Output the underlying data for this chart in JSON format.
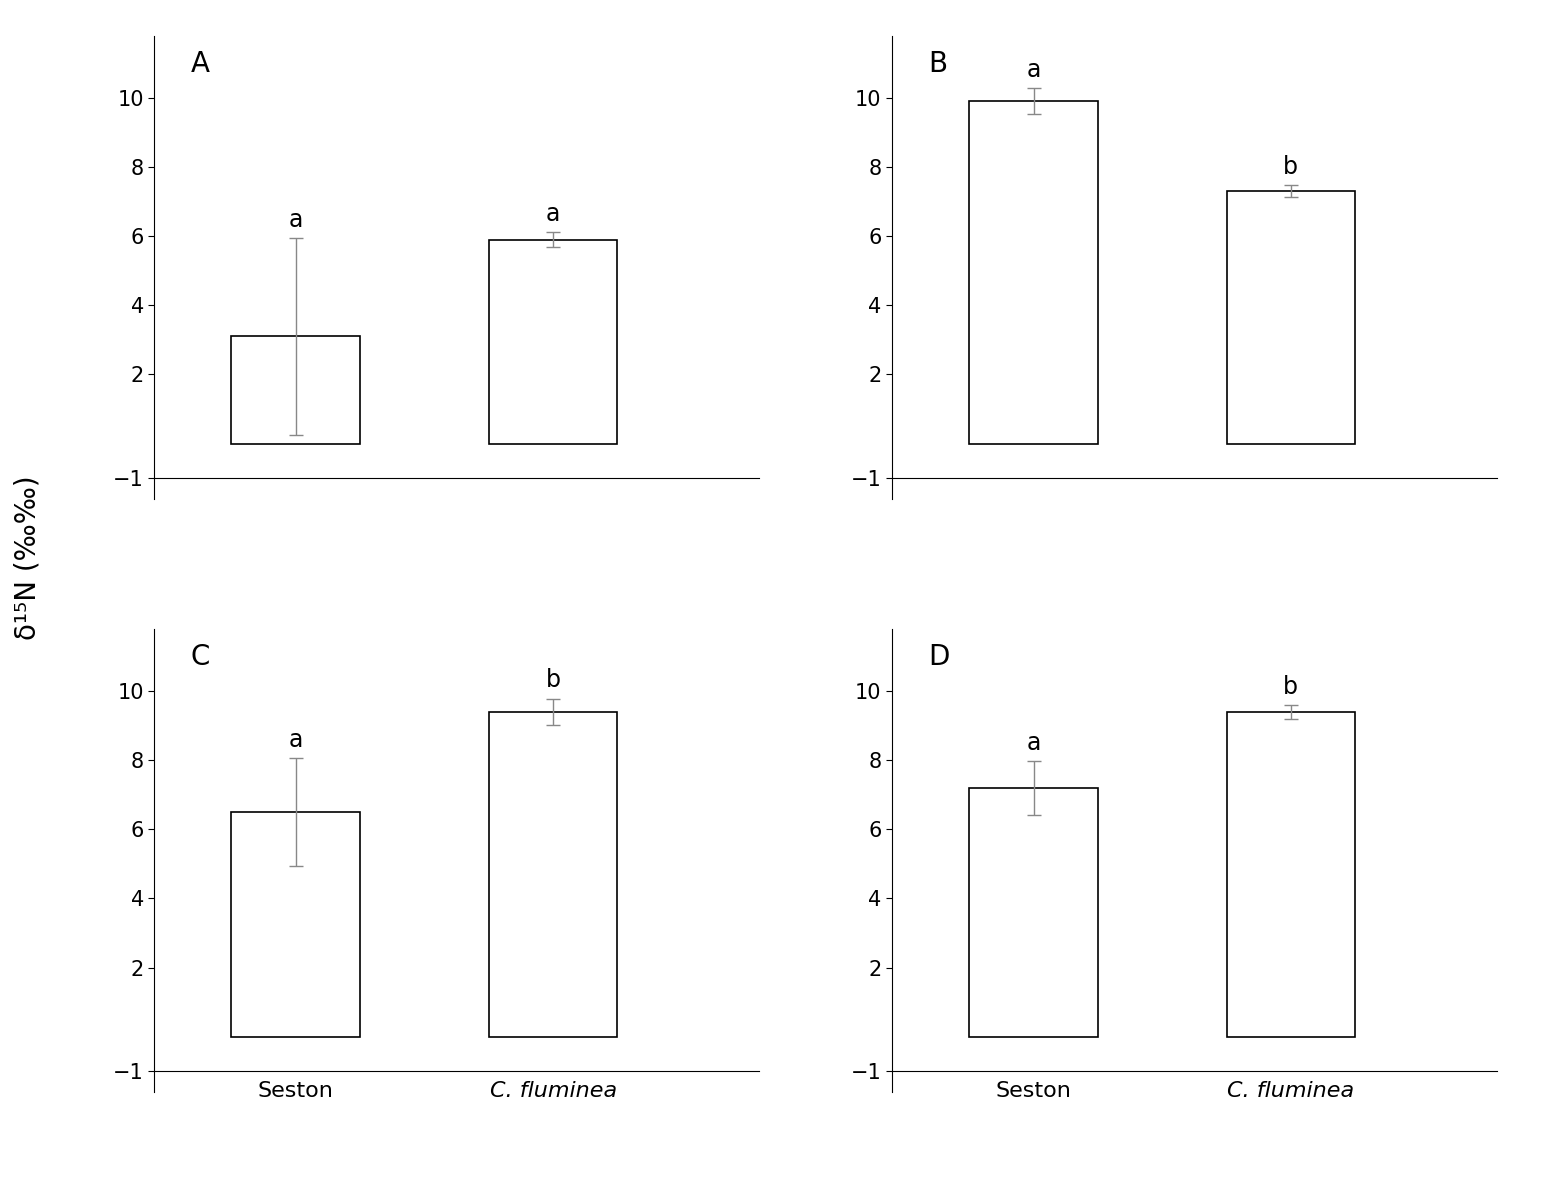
{
  "panels": [
    {
      "label": "A",
      "bars": [
        {
          "category": "Seston",
          "value": 3.1,
          "error": 2.85,
          "letter": "a"
        },
        {
          "category": "C. fluminea",
          "value": 5.9,
          "error": 0.22,
          "letter": "a"
        }
      ]
    },
    {
      "label": "B",
      "bars": [
        {
          "category": "Seston",
          "value": 9.9,
          "error": 0.38,
          "letter": "a"
        },
        {
          "category": "C. fluminea",
          "value": 7.3,
          "error": 0.18,
          "letter": "b"
        }
      ]
    },
    {
      "label": "C",
      "bars": [
        {
          "category": "Seston",
          "value": 6.5,
          "error": 1.55,
          "letter": "a"
        },
        {
          "category": "C. fluminea",
          "value": 9.4,
          "error": 0.38,
          "letter": "b"
        }
      ]
    },
    {
      "label": "D",
      "bars": [
        {
          "category": "Seston",
          "value": 7.2,
          "error": 0.78,
          "letter": "a"
        },
        {
          "category": "C. fluminea",
          "value": 9.4,
          "error": 0.2,
          "letter": "b"
        }
      ]
    }
  ],
  "ylim": [
    -1.6,
    11.8
  ],
  "yticks": [
    -1,
    2,
    4,
    6,
    8,
    10
  ],
  "ylabel": "δ¹⁵N (‰‰)",
  "bar_color": "white",
  "bar_edgecolor": "black",
  "bar_width": 0.5,
  "bar_positions": [
    1,
    2
  ],
  "xlim": [
    0.45,
    2.8
  ],
  "letter_fontsize": 17,
  "panel_label_fontsize": 20,
  "tick_fontsize": 15,
  "ylabel_fontsize": 20,
  "xlabel_fontsize": 16,
  "background_color": "white"
}
